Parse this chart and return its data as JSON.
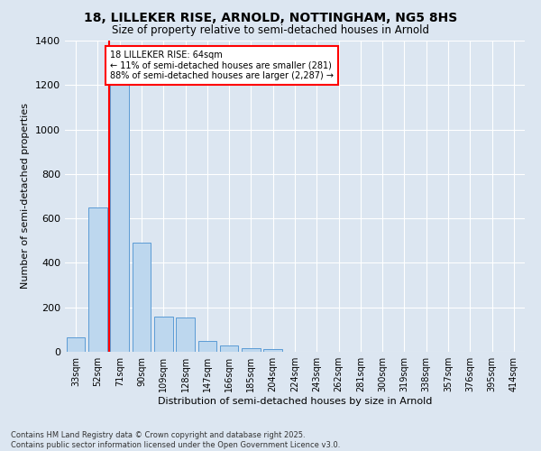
{
  "title_line1": "18, LILLEKER RISE, ARNOLD, NOTTINGHAM, NG5 8HS",
  "title_line2": "Size of property relative to semi-detached houses in Arnold",
  "xlabel": "Distribution of semi-detached houses by size in Arnold",
  "ylabel": "Number of semi-detached properties",
  "categories": [
    "33sqm",
    "52sqm",
    "71sqm",
    "90sqm",
    "109sqm",
    "128sqm",
    "147sqm",
    "166sqm",
    "185sqm",
    "204sqm",
    "224sqm",
    "243sqm",
    "262sqm",
    "281sqm",
    "300sqm",
    "319sqm",
    "338sqm",
    "357sqm",
    "376sqm",
    "395sqm",
    "414sqm"
  ],
  "values": [
    65,
    650,
    1220,
    490,
    160,
    155,
    50,
    28,
    18,
    14,
    0,
    0,
    0,
    0,
    0,
    0,
    0,
    0,
    0,
    0,
    0
  ],
  "bar_color": "#bdd7ee",
  "bar_edge_color": "#5b9bd5",
  "property_line_x": 1.5,
  "annotation_text": "18 LILLEKER RISE: 64sqm\n← 11% of semi-detached houses are smaller (281)\n88% of semi-detached houses are larger (2,287) →",
  "annotation_box_color": "#ffffff",
  "annotation_box_edge_color": "#ff0000",
  "vline_color": "#ff0000",
  "ylim": [
    0,
    1400
  ],
  "yticks": [
    0,
    200,
    400,
    600,
    800,
    1000,
    1200,
    1400
  ],
  "background_color": "#dce6f1",
  "grid_color": "#ffffff",
  "footer_line1": "Contains HM Land Registry data © Crown copyright and database right 2025.",
  "footer_line2": "Contains public sector information licensed under the Open Government Licence v3.0."
}
